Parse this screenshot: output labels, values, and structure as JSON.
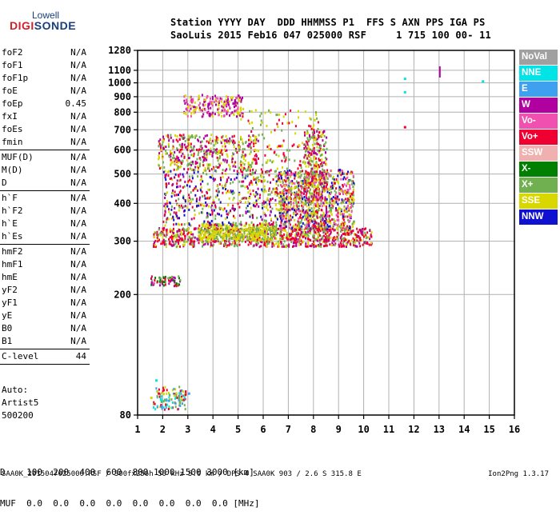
{
  "logo": {
    "top": "Lowell",
    "main_a": "DIGI",
    "main_b": "SONDE",
    "blue": "#1a3d7c",
    "red": "#d0202a"
  },
  "header": {
    "line1": "Station YYYY DAY  DDD HHMMSS P1  FFS S AXN PPS IGA PS",
    "line2": "SaoLuis 2015 Feb16 047 025000 RSF     1 715 100 00- 11"
  },
  "params": {
    "groups": [
      [
        [
          "foF2",
          "N/A"
        ],
        [
          "foF1",
          "N/A"
        ],
        [
          "foF1p",
          "N/A"
        ],
        [
          "foE",
          "N/A"
        ],
        [
          "foEp",
          "0.45"
        ],
        [
          "fxI",
          "N/A"
        ],
        [
          "foEs",
          "N/A"
        ],
        [
          "fmin",
          "N/A"
        ]
      ],
      [
        [
          "MUF(D)",
          "N/A"
        ],
        [
          "M(D)",
          "N/A"
        ],
        [
          "D",
          "N/A"
        ]
      ],
      [
        [
          "h`F",
          "N/A"
        ],
        [
          "h`F2",
          "N/A"
        ],
        [
          "h`E",
          "N/A"
        ],
        [
          "h`Es",
          "N/A"
        ]
      ],
      [
        [
          "hmF2",
          "N/A"
        ],
        [
          "hmF1",
          "N/A"
        ],
        [
          "hmE",
          "N/A"
        ],
        [
          "yF2",
          "N/A"
        ],
        [
          "yF1",
          "N/A"
        ],
        [
          "yE",
          "N/A"
        ],
        [
          "B0",
          "N/A"
        ],
        [
          "B1",
          "N/A"
        ]
      ],
      [
        [
          "C-level",
          "44"
        ]
      ]
    ]
  },
  "auto": {
    "line1": "Auto:",
    "line2": "Artist5",
    "line3": "500200"
  },
  "legend": [
    {
      "label": "NoVal",
      "color": "#a0a0a0"
    },
    {
      "label": "NNE",
      "color": "#00e4e8"
    },
    {
      "label": "E",
      "color": "#40a0f0"
    },
    {
      "label": "W",
      "color": "#b000a0"
    },
    {
      "label": "Vo-",
      "color": "#f050b0"
    },
    {
      "label": "Vo+",
      "color": "#f00030"
    },
    {
      "label": "SSW",
      "color": "#f0b0b0"
    },
    {
      "label": "X-",
      "color": "#008000"
    },
    {
      "label": "X+",
      "color": "#70b050"
    },
    {
      "label": "SSE",
      "color": "#d8d800"
    },
    {
      "label": "NNW",
      "color": "#1010d0"
    }
  ],
  "bottom": {
    "d_row": "D    100  200  400  600  800 1000 1500 3000 [km]",
    "muf_row": "MUF  0.0  0.0  0.0  0.0  0.0  0.0  0.0  0.0 [MHz]"
  },
  "footer": {
    "left": "SAA0K_2015047025000.RSF / 300fx256h 50 kHz 5.0 km / DPS-4 SAA0K 903 / 2.6 S 315.8 E",
    "right": "Ion2Png 1.3.17"
  },
  "chart_data": {
    "type": "scatter",
    "x_ticks": [
      1,
      2,
      3,
      4,
      5,
      6,
      7,
      8,
      9,
      10,
      11,
      12,
      13,
      14,
      15,
      16
    ],
    "y_ticks": [
      80,
      200,
      300,
      400,
      500,
      600,
      700,
      800,
      900,
      1000,
      1100,
      1280
    ],
    "xlim": [
      1,
      16
    ],
    "ylim": [
      80,
      1280
    ],
    "y_scale": "log",
    "grid": true,
    "points": [
      {
        "f": 1.5,
        "h": 92,
        "c": "SSE"
      },
      {
        "f": 1.8,
        "h": 95,
        "c": "Vo+"
      },
      {
        "f": 2.2,
        "h": 90,
        "c": "E"
      },
      {
        "f": 2.6,
        "h": 92,
        "c": "X+"
      },
      {
        "f": 3.0,
        "h": 95,
        "c": "E"
      },
      {
        "f": 1.7,
        "h": 105,
        "c": "NNE"
      },
      {
        "f": 2.0,
        "h": 222,
        "c": "X-"
      },
      {
        "f": 2.3,
        "h": 225,
        "c": "W"
      },
      {
        "f": 1.6,
        "h": 220,
        "c": "Vo-"
      },
      {
        "f": 2.0,
        "h": 300,
        "c": "Vo+"
      },
      {
        "f": 2.6,
        "h": 305,
        "c": "Vo+"
      },
      {
        "f": 3.2,
        "h": 302,
        "c": "Vo+"
      },
      {
        "f": 3.8,
        "h": 310,
        "c": "SSE"
      },
      {
        "f": 4.4,
        "h": 315,
        "c": "SSE"
      },
      {
        "f": 5.0,
        "h": 320,
        "c": "SSE"
      },
      {
        "f": 5.6,
        "h": 322,
        "c": "SSE"
      },
      {
        "f": 6.2,
        "h": 330,
        "c": "X+"
      },
      {
        "f": 6.8,
        "h": 335,
        "c": "Vo+"
      },
      {
        "f": 7.4,
        "h": 330,
        "c": "Vo+"
      },
      {
        "f": 8.0,
        "h": 340,
        "c": "Vo+"
      },
      {
        "f": 8.6,
        "h": 330,
        "c": "Vo+"
      },
      {
        "f": 9.2,
        "h": 320,
        "c": "Vo+"
      },
      {
        "f": 9.8,
        "h": 310,
        "c": "Vo+"
      },
      {
        "f": 7.0,
        "h": 420,
        "c": "SSE"
      },
      {
        "f": 7.2,
        "h": 500,
        "c": "NNW"
      },
      {
        "f": 7.6,
        "h": 450,
        "c": "Vo+"
      },
      {
        "f": 8.0,
        "h": 480,
        "c": "SSE"
      },
      {
        "f": 8.2,
        "h": 560,
        "c": "Vo+"
      },
      {
        "f": 8.8,
        "h": 470,
        "c": "Vo+"
      },
      {
        "f": 9.0,
        "h": 520,
        "c": "NNW"
      },
      {
        "f": 9.2,
        "h": 440,
        "c": "SSE"
      },
      {
        "f": 6.0,
        "h": 480,
        "c": "SSE"
      },
      {
        "f": 6.4,
        "h": 450,
        "c": "SSE"
      },
      {
        "f": 5.4,
        "h": 420,
        "c": "SSE"
      },
      {
        "f": 4.6,
        "h": 440,
        "c": "SSE"
      },
      {
        "f": 2.6,
        "h": 560,
        "c": "W"
      },
      {
        "f": 3.0,
        "h": 570,
        "c": "W"
      },
      {
        "f": 3.6,
        "h": 560,
        "c": "W"
      },
      {
        "f": 4.2,
        "h": 600,
        "c": "SSE"
      },
      {
        "f": 5.0,
        "h": 620,
        "c": "SSE"
      },
      {
        "f": 3.2,
        "h": 840,
        "c": "W"
      },
      {
        "f": 3.8,
        "h": 860,
        "c": "W"
      },
      {
        "f": 4.4,
        "h": 850,
        "c": "SSE"
      },
      {
        "f": 5.0,
        "h": 880,
        "c": "SSE"
      },
      {
        "f": 8.0,
        "h": 760,
        "c": "SSE"
      },
      {
        "f": 13.0,
        "h": 1080,
        "c": "W"
      },
      {
        "f": 11.6,
        "h": 1040,
        "c": "NNE"
      },
      {
        "f": 14.7,
        "h": 1020,
        "c": "NNE"
      },
      {
        "f": 11.6,
        "h": 720,
        "c": "Vo+"
      },
      {
        "f": 11.6,
        "h": 940,
        "c": "NNE"
      }
    ],
    "regions": [
      {
        "f0": 1.6,
        "f1": 2.9,
        "h0": 84,
        "h1": 100,
        "c": [
          "E",
          "SSE",
          "X+",
          "Vo+",
          "NNE"
        ],
        "n": 120
      },
      {
        "f0": 1.5,
        "f1": 2.7,
        "h0": 215,
        "h1": 232,
        "c": [
          "X-",
          "W",
          "Vo+",
          "X+"
        ],
        "n": 60
      },
      {
        "f0": 1.6,
        "f1": 10.3,
        "h0": 290,
        "h1": 335,
        "c": [
          "Vo+",
          "SSE",
          "Vo+",
          "W",
          "X+"
        ],
        "n": 900
      },
      {
        "f0": 3.4,
        "f1": 6.5,
        "h0": 305,
        "h1": 345,
        "c": [
          "SSE",
          "SSE",
          "X+"
        ],
        "n": 400
      },
      {
        "f0": 6.6,
        "f1": 9.6,
        "h0": 330,
        "h1": 520,
        "c": [
          "Vo+",
          "SSE",
          "NNW",
          "Vo-",
          "X+"
        ],
        "n": 900
      },
      {
        "f0": 7.6,
        "f1": 8.5,
        "h0": 330,
        "h1": 700,
        "c": [
          "SSE",
          "Vo+",
          "W",
          "X+"
        ],
        "n": 350
      },
      {
        "f0": 2.0,
        "f1": 6.6,
        "h0": 340,
        "h1": 520,
        "c": [
          "W",
          "SSE",
          "X+",
          "Vo+",
          "NNW"
        ],
        "n": 500
      },
      {
        "f0": 1.8,
        "f1": 5.8,
        "h0": 520,
        "h1": 680,
        "c": [
          "W",
          "SSE",
          "Vo+",
          "X+"
        ],
        "n": 450
      },
      {
        "f0": 2.8,
        "f1": 5.2,
        "h0": 780,
        "h1": 920,
        "c": [
          "W",
          "SSE",
          "Vo-"
        ],
        "n": 200
      },
      {
        "f0": 5.0,
        "f1": 8.2,
        "h0": 380,
        "h1": 820,
        "c": [
          "SSE",
          "X+",
          "Vo+"
        ],
        "n": 220
      }
    ]
  }
}
